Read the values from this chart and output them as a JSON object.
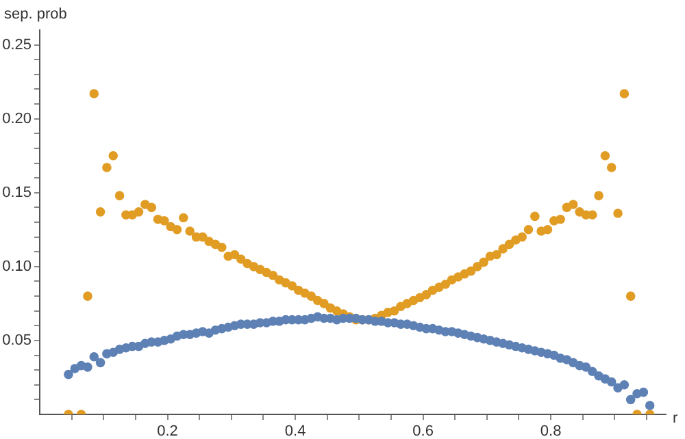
{
  "chart_data": {
    "type": "scatter",
    "xlabel": "r",
    "ylabel": "sep. prob",
    "x": [
      0.045,
      0.055,
      0.065,
      0.075,
      0.085,
      0.095,
      0.105,
      0.115,
      0.125,
      0.135,
      0.145,
      0.155,
      0.165,
      0.175,
      0.185,
      0.195,
      0.205,
      0.215,
      0.225,
      0.235,
      0.245,
      0.255,
      0.265,
      0.275,
      0.285,
      0.295,
      0.305,
      0.315,
      0.325,
      0.335,
      0.345,
      0.355,
      0.365,
      0.375,
      0.385,
      0.395,
      0.405,
      0.415,
      0.425,
      0.435,
      0.445,
      0.455,
      0.465,
      0.475,
      0.485,
      0.495,
      0.505,
      0.515,
      0.525,
      0.535,
      0.545,
      0.555,
      0.565,
      0.575,
      0.585,
      0.595,
      0.605,
      0.615,
      0.625,
      0.635,
      0.645,
      0.655,
      0.665,
      0.675,
      0.685,
      0.695,
      0.705,
      0.715,
      0.725,
      0.735,
      0.745,
      0.755,
      0.765,
      0.775,
      0.785,
      0.795,
      0.805,
      0.815,
      0.825,
      0.835,
      0.845,
      0.855,
      0.865,
      0.875,
      0.885,
      0.895,
      0.905,
      0.915,
      0.925,
      0.935,
      0.945,
      0.955
    ],
    "series": [
      {
        "color": "#5e81b5",
        "values": [
          0.027,
          0.031,
          0.033,
          0.032,
          0.039,
          0.035,
          0.041,
          0.042,
          0.044,
          0.045,
          0.046,
          0.046,
          0.048,
          0.049,
          0.049,
          0.05,
          0.051,
          0.053,
          0.054,
          0.054,
          0.055,
          0.056,
          0.055,
          0.057,
          0.058,
          0.059,
          0.06,
          0.061,
          0.061,
          0.061,
          0.062,
          0.062,
          0.063,
          0.063,
          0.064,
          0.064,
          0.064,
          0.064,
          0.065,
          0.066,
          0.065,
          0.065,
          0.064,
          0.065,
          0.065,
          0.065,
          0.064,
          0.064,
          0.063,
          0.063,
          0.062,
          0.062,
          0.061,
          0.061,
          0.06,
          0.059,
          0.058,
          0.058,
          0.057,
          0.056,
          0.056,
          0.055,
          0.054,
          0.053,
          0.052,
          0.051,
          0.05,
          0.049,
          0.048,
          0.047,
          0.046,
          0.045,
          0.044,
          0.043,
          0.042,
          0.041,
          0.04,
          0.038,
          0.037,
          0.035,
          0.033,
          0.032,
          0.029,
          0.026,
          0.024,
          0.022,
          0.018,
          0.02,
          0.01,
          0.014,
          0.015,
          0.006
        ]
      },
      {
        "color": "#e19c24",
        "values": [
          0,
          null,
          0,
          0.08,
          0.217,
          0.137,
          0.167,
          0.175,
          0.148,
          0.135,
          0.135,
          0.137,
          0.142,
          0.14,
          0.132,
          0.131,
          0.127,
          0.125,
          0.133,
          0.124,
          0.12,
          0.12,
          0.117,
          0.115,
          0.113,
          0.107,
          0.108,
          0.105,
          0.102,
          0.1,
          0.098,
          0.096,
          0.094,
          0.091,
          0.089,
          0.087,
          0.084,
          0.082,
          0.08,
          0.077,
          0.075,
          0.072,
          0.07,
          0.068,
          0.066,
          0.064,
          0.064,
          0.064,
          0.065,
          0.067,
          0.069,
          0.07,
          0.073,
          0.075,
          0.077,
          0.079,
          0.081,
          0.084,
          0.086,
          0.088,
          0.091,
          0.093,
          0.095,
          0.097,
          0.1,
          0.103,
          0.107,
          0.108,
          0.112,
          0.115,
          0.118,
          0.12,
          0.125,
          0.134,
          0.124,
          0.125,
          0.131,
          0.132,
          0.14,
          0.142,
          0.137,
          0.135,
          0.135,
          0.148,
          0.175,
          0.167,
          0.136,
          0.217,
          0.08,
          0,
          null,
          0
        ]
      }
    ],
    "xlim": [
      0,
      0.98
    ],
    "xticks": [
      {
        "value": 0.05,
        "label": null
      },
      {
        "value": 0.1,
        "label": null
      },
      {
        "value": 0.15,
        "label": null
      },
      {
        "value": 0.2,
        "label": "0.2"
      },
      {
        "value": 0.25,
        "label": null
      },
      {
        "value": 0.3,
        "label": null
      },
      {
        "value": 0.35,
        "label": null
      },
      {
        "value": 0.4,
        "label": "0.4"
      },
      {
        "value": 0.45,
        "label": null
      },
      {
        "value": 0.5,
        "label": null
      },
      {
        "value": 0.55,
        "label": null
      },
      {
        "value": 0.6,
        "label": "0.6"
      },
      {
        "value": 0.65,
        "label": null
      },
      {
        "value": 0.7,
        "label": null
      },
      {
        "value": 0.75,
        "label": null
      },
      {
        "value": 0.8,
        "label": "0.8"
      },
      {
        "value": 0.85,
        "label": null
      },
      {
        "value": 0.9,
        "label": null
      },
      {
        "value": 0.95,
        "label": null
      }
    ],
    "ylim": [
      0,
      0.26
    ],
    "yticks": [
      {
        "value": 0.01,
        "label": null
      },
      {
        "value": 0.02,
        "label": null
      },
      {
        "value": 0.03,
        "label": null
      },
      {
        "value": 0.04,
        "label": null
      },
      {
        "value": 0.05,
        "label": "0.05"
      },
      {
        "value": 0.06,
        "label": null
      },
      {
        "value": 0.07,
        "label": null
      },
      {
        "value": 0.08,
        "label": null
      },
      {
        "value": 0.09,
        "label": null
      },
      {
        "value": 0.1,
        "label": "0.10"
      },
      {
        "value": 0.11,
        "label": null
      },
      {
        "value": 0.12,
        "label": null
      },
      {
        "value": 0.13,
        "label": null
      },
      {
        "value": 0.14,
        "label": null
      },
      {
        "value": 0.15,
        "label": "0.15"
      },
      {
        "value": 0.16,
        "label": null
      },
      {
        "value": 0.17,
        "label": null
      },
      {
        "value": 0.18,
        "label": null
      },
      {
        "value": 0.19,
        "label": null
      },
      {
        "value": 0.2,
        "label": "0.20"
      },
      {
        "value": 0.21,
        "label": null
      },
      {
        "value": 0.22,
        "label": null
      },
      {
        "value": 0.23,
        "label": null
      },
      {
        "value": 0.24,
        "label": null
      },
      {
        "value": 0.25,
        "label": "0.25"
      }
    ],
    "marker": "circle",
    "legend": false
  }
}
